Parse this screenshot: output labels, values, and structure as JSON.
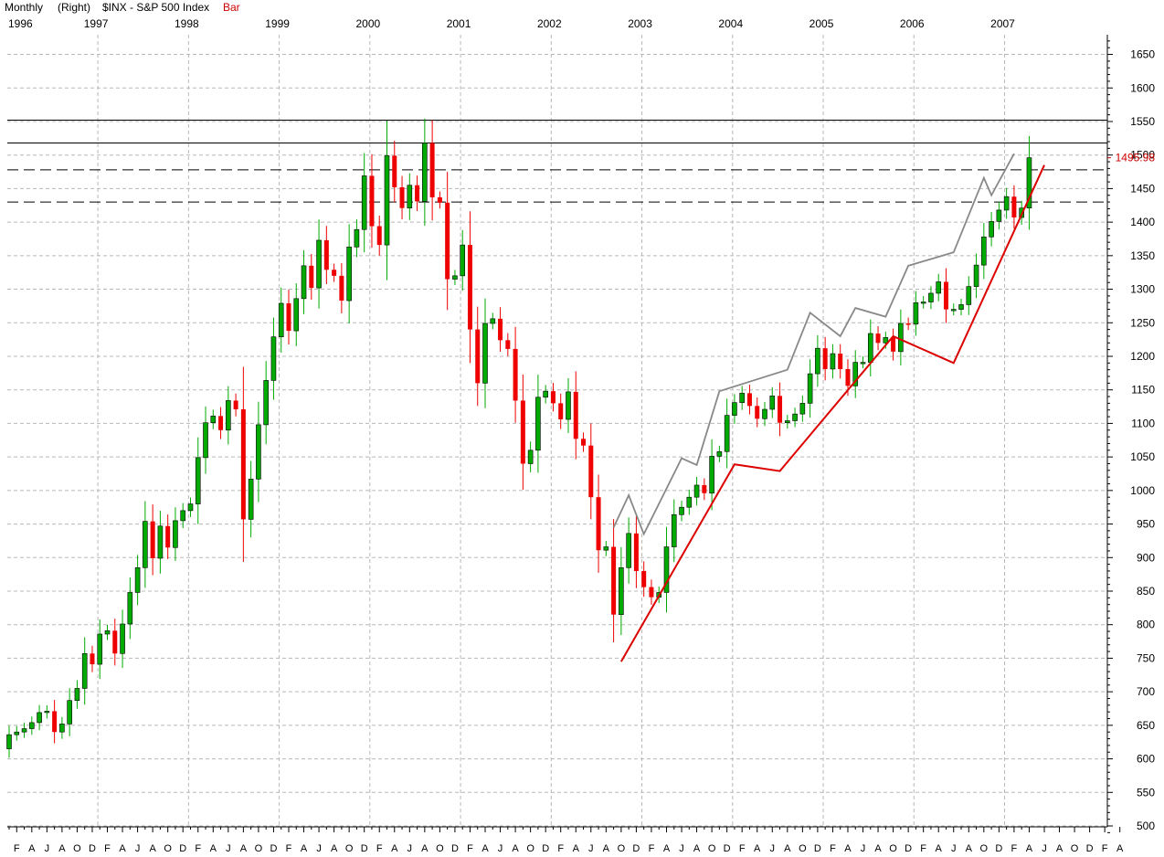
{
  "header": {
    "period": "Monthly",
    "scale": "(Right)",
    "symbol": "$INX - S&P 500 Index",
    "style": "Bar"
  },
  "colors": {
    "up": "#00aa00",
    "down": "#ee0000",
    "trend": "#dd0000",
    "channel": "#888888",
    "last_price": "#cc0000"
  },
  "chart_data": {
    "type": "candlestick",
    "title": "$INX - S&P 500 Index",
    "period": "Monthly",
    "y_axis": {
      "side": "right",
      "range": [
        490,
        1670
      ],
      "ticks": [
        500,
        550,
        600,
        650,
        700,
        750,
        800,
        850,
        900,
        950,
        1000,
        1050,
        1100,
        1150,
        1200,
        1250,
        1300,
        1350,
        1400,
        1450,
        1500,
        1550,
        1600,
        1650
      ]
    },
    "year_labels": [
      "1996",
      "1997",
      "1998",
      "1999",
      "2000",
      "2001",
      "2002",
      "2003",
      "2004",
      "2005",
      "2006",
      "2007"
    ],
    "month_labels": [
      "F",
      "A",
      "J",
      "A",
      "O",
      "D",
      "F",
      "A",
      "J",
      "A",
      "O",
      "D",
      "F",
      "A",
      "J",
      "A",
      "O",
      "D",
      "F",
      "A",
      "J",
      "A",
      "O",
      "D",
      "F",
      "A",
      "J",
      "A",
      "O",
      "D",
      "F",
      "A",
      "J",
      "A",
      "O",
      "D",
      "F",
      "A",
      "J",
      "A",
      "O",
      "D",
      "F",
      "A",
      "J",
      "A",
      "O",
      "D",
      "F",
      "A",
      "J",
      "A",
      "O",
      "D",
      "F",
      "A",
      "J",
      "A",
      "O",
      "D",
      "F",
      "A",
      "J",
      "A",
      "O",
      "D",
      "F",
      "A",
      "J",
      "A",
      "O",
      "D",
      "F",
      "A"
    ],
    "last_price": "1495.98",
    "series": {
      "start": "1996-01",
      "close": [
        636,
        640,
        645,
        654,
        669,
        671,
        640,
        652,
        687,
        705,
        757,
        741,
        786,
        791,
        757,
        801,
        848,
        885,
        954,
        899,
        947,
        915,
        955,
        970,
        980,
        1049,
        1101,
        1111,
        1090,
        1134,
        1121,
        957,
        1017,
        1098,
        1164,
        1229,
        1279,
        1238,
        1286,
        1335,
        1302,
        1373,
        1329,
        1320,
        1283,
        1363,
        1389,
        1469,
        1394,
        1366,
        1499,
        1452,
        1421,
        1455,
        1431,
        1518,
        1437,
        1429,
        1315,
        1320,
        1366,
        1240,
        1160,
        1249,
        1256,
        1224,
        1211,
        1134,
        1040,
        1060,
        1139,
        1148,
        1130,
        1106,
        1147,
        1077,
        1067,
        990,
        911,
        916,
        815,
        885,
        936,
        880,
        856,
        841,
        848,
        916,
        964,
        975,
        990,
        1008,
        996,
        1051,
        1058,
        1112,
        1131,
        1145,
        1126,
        1107,
        1121,
        1141,
        1101,
        1104,
        1114,
        1130,
        1174,
        1212,
        1181,
        1204,
        1181,
        1156,
        1191,
        1191,
        1234,
        1220,
        1228,
        1207,
        1249,
        1248,
        1280,
        1281,
        1294,
        1311,
        1270,
        1270,
        1277,
        1304,
        1336,
        1378,
        1401,
        1418,
        1438,
        1407,
        1421,
        1496
      ],
      "open_first": 615
    },
    "resistance_levels": [
      1552,
      1518
    ],
    "support_levels": [
      1478,
      1430
    ],
    "trendline_points": [
      [
        "2002-10",
        745
      ],
      [
        "2004-01",
        1039
      ],
      [
        "2004-07",
        1029
      ],
      [
        "2005-10",
        1230
      ],
      [
        "2006-06",
        1190
      ],
      [
        "2007-06",
        1485
      ]
    ],
    "channel_points": [
      [
        "2002-09",
        945
      ],
      [
        "2002-11",
        993
      ],
      [
        "2003-01",
        935
      ],
      [
        "2003-06",
        1048
      ],
      [
        "2003-08",
        1038
      ],
      [
        "2003-11",
        1148
      ],
      [
        "2004-08",
        1180
      ],
      [
        "2004-11",
        1265
      ],
      [
        "2005-03",
        1230
      ],
      [
        "2005-05",
        1272
      ],
      [
        "2005-09",
        1259
      ],
      [
        "2005-12",
        1335
      ],
      [
        "2006-06",
        1355
      ],
      [
        "2006-10",
        1466
      ],
      [
        "2006-11",
        1440
      ],
      [
        "2007-02",
        1502
      ]
    ]
  }
}
